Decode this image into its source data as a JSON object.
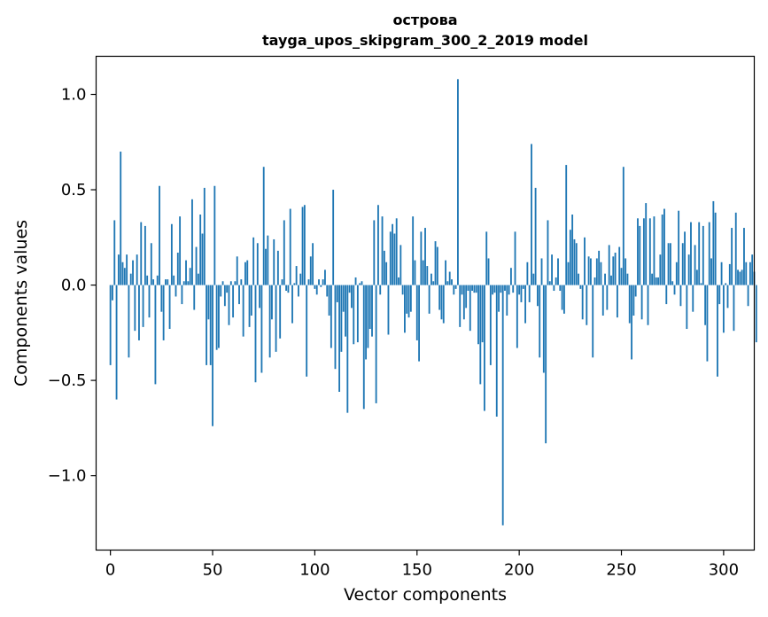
{
  "chart_data": {
    "type": "bar",
    "title_line1": "острова",
    "title_line2": "tayga_upos_skipgram_300_2_2019 model",
    "xlabel": "Vector components",
    "ylabel": "Components values",
    "xlim": [
      -7,
      315
    ],
    "ylim": [
      -1.39,
      1.2
    ],
    "xticks": [
      0,
      50,
      100,
      150,
      200,
      250,
      300
    ],
    "yticks": [
      1.0,
      0.5,
      0.0,
      -0.5,
      -1.0
    ],
    "ytick_labels": [
      "1.0",
      "0.5",
      "0.0",
      "−0.5",
      "−1.0"
    ],
    "bar_color": "#1f77b4",
    "grid": false,
    "values": [
      -0.42,
      -0.08,
      0.34,
      -0.6,
      0.16,
      0.7,
      0.12,
      0.09,
      0.16,
      -0.38,
      0.06,
      0.13,
      -0.24,
      0.16,
      -0.29,
      0.33,
      -0.22,
      0.31,
      0.05,
      -0.17,
      0.22,
      0.03,
      -0.52,
      0.05,
      0.52,
      -0.14,
      -0.29,
      0.03,
      0.03,
      -0.23,
      0.32,
      0.05,
      -0.06,
      0.17,
      0.36,
      -0.1,
      0.02,
      0.13,
      0.02,
      0.09,
      0.45,
      -0.13,
      0.2,
      0.06,
      0.37,
      0.27,
      0.51,
      -0.42,
      -0.18,
      -0.42,
      -0.74,
      0.52,
      -0.34,
      -0.33,
      -0.06,
      0.02,
      -0.11,
      -0.04,
      -0.21,
      0.02,
      -0.17,
      0.02,
      0.15,
      -0.1,
      0.03,
      -0.27,
      0.12,
      0.13,
      -0.22,
      -0.16,
      0.25,
      -0.51,
      0.22,
      -0.12,
      -0.46,
      0.62,
      0.19,
      0.26,
      -0.38,
      -0.18,
      0.24,
      -0.35,
      0.18,
      -0.28,
      0.03,
      0.34,
      -0.03,
      -0.04,
      0.4,
      -0.2,
      0.01,
      0.1,
      -0.06,
      0.06,
      0.41,
      0.42,
      -0.48,
      0.03,
      0.15,
      0.22,
      -0.02,
      -0.05,
      0.03,
      -0.01,
      0.03,
      0.08,
      -0.06,
      -0.16,
      -0.33,
      0.5,
      -0.44,
      -0.09,
      -0.56,
      -0.35,
      -0.14,
      -0.27,
      -0.67,
      -0.04,
      -0.12,
      -0.31,
      0.04,
      -0.3,
      0.01,
      0.02,
      -0.65,
      -0.39,
      -0.33,
      -0.23,
      -0.27,
      0.34,
      -0.62,
      0.42,
      -0.05,
      0.36,
      0.18,
      0.12,
      -0.26,
      0.28,
      0.32,
      0.27,
      0.35,
      0.04,
      0.21,
      -0.05,
      -0.25,
      -0.15,
      -0.17,
      -0.14,
      0.36,
      0.13,
      -0.29,
      -0.4,
      0.28,
      0.13,
      0.3,
      0.1,
      -0.15,
      0.06,
      0.02,
      0.23,
      0.2,
      -0.13,
      -0.18,
      -0.2,
      0.13,
      0.02,
      0.07,
      0.03,
      -0.05,
      -0.02,
      1.08,
      -0.22,
      -0.05,
      -0.18,
      -0.12,
      -0.03,
      -0.24,
      -0.03,
      -0.04,
      -0.04,
      -0.31,
      -0.52,
      -0.3,
      -0.66,
      0.28,
      0.14,
      -0.42,
      -0.05,
      -0.04,
      -0.69,
      -0.14,
      -0.04,
      -1.26,
      -0.03,
      -0.16,
      -0.05,
      0.09,
      -0.04,
      0.28,
      -0.33,
      -0.05,
      -0.09,
      -0.02,
      -0.2,
      0.12,
      -0.09,
      0.74,
      0.06,
      0.51,
      -0.11,
      -0.38,
      0.14,
      -0.46,
      -0.83,
      0.34,
      0.02,
      0.16,
      -0.03,
      0.04,
      0.14,
      -0.03,
      -0.13,
      -0.15,
      0.63,
      0.12,
      0.29,
      0.37,
      0.24,
      0.22,
      0.06,
      -0.02,
      -0.18,
      0.25,
      -0.21,
      0.15,
      0.14,
      -0.38,
      0.04,
      0.14,
      0.18,
      0.12,
      -0.16,
      0.06,
      -0.13,
      0.21,
      0.05,
      0.15,
      0.17,
      -0.17,
      0.2,
      0.09,
      0.62,
      0.14,
      0.06,
      -0.2,
      -0.39,
      -0.16,
      -0.06,
      0.35,
      0.31,
      -0.18,
      0.35,
      0.43,
      -0.21,
      0.35,
      0.06,
      0.36,
      0.04,
      0.04,
      0.16,
      0.37,
      0.4,
      -0.1,
      0.22,
      0.22,
      0.02,
      -0.05,
      0.12,
      0.39,
      -0.11,
      0.22,
      0.28,
      -0.23,
      0.16,
      0.33,
      -0.14,
      0.21,
      0.08,
      0.33,
      0.01,
      0.31,
      -0.21,
      -0.4,
      0.33,
      0.14,
      0.44,
      0.38,
      -0.48,
      -0.1,
      0.12,
      -0.25,
      0.01,
      -0.12,
      0.11,
      0.3,
      -0.24,
      0.38,
      0.08,
      0.07,
      0.08,
      0.3,
      0.12,
      -0.11,
      0.12,
      0.16,
      0.07,
      -0.3
    ]
  }
}
